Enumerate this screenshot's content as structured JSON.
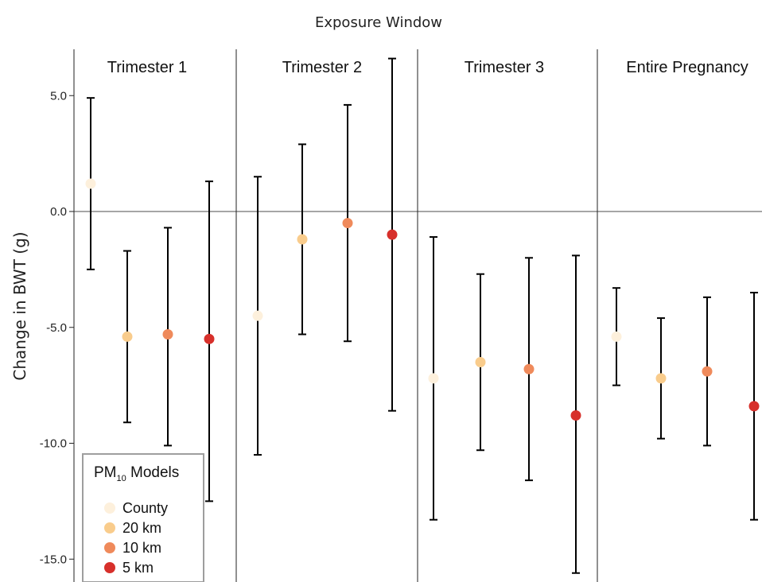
{
  "chart_data": {
    "type": "scatter",
    "title": "Exposure Window",
    "ylabel": "Change in BWT (g)",
    "xlabel": "",
    "ylim": [
      -15.8,
      7.0
    ],
    "yticks": [
      "5.0",
      "0.0",
      "-5.0",
      "-10.0",
      "-15.0"
    ],
    "ytick_values": [
      5,
      0,
      -5,
      -10,
      -15
    ],
    "reference_line": 0,
    "grid": false,
    "facets": [
      "Trimester 1",
      "Trimester 2",
      "Trimester 3",
      "Entire Pregnancy"
    ],
    "legend": {
      "title_main": "PM",
      "title_sub": "10",
      "title_rest": " Models",
      "placement": "bottom-left"
    },
    "series": [
      {
        "name": "County",
        "color": "#fdf0dc",
        "points": [
          {
            "facet": "Trimester 1",
            "y": 1.2,
            "lower": -2.5,
            "upper": 4.9
          },
          {
            "facet": "Trimester 2",
            "y": -4.5,
            "lower": -10.5,
            "upper": 1.5
          },
          {
            "facet": "Trimester 3",
            "y": -7.2,
            "lower": -13.3,
            "upper": -1.1
          },
          {
            "facet": "Entire Pregnancy",
            "y": -5.4,
            "lower": -7.5,
            "upper": -3.3
          }
        ]
      },
      {
        "name": "20 km",
        "color": "#f9cc8c",
        "points": [
          {
            "facet": "Trimester 1",
            "y": -5.4,
            "lower": -9.1,
            "upper": -1.7
          },
          {
            "facet": "Trimester 2",
            "y": -1.2,
            "lower": -5.3,
            "upper": 2.9
          },
          {
            "facet": "Trimester 3",
            "y": -6.5,
            "lower": -10.3,
            "upper": -2.7
          },
          {
            "facet": "Entire Pregnancy",
            "y": -7.2,
            "lower": -9.8,
            "upper": -4.6
          }
        ]
      },
      {
        "name": "10 km",
        "color": "#ef8a5b",
        "points": [
          {
            "facet": "Trimester 1",
            "y": -5.3,
            "lower": -10.1,
            "upper": -0.7
          },
          {
            "facet": "Trimester 2",
            "y": -0.5,
            "lower": -5.6,
            "upper": 4.6
          },
          {
            "facet": "Trimester 3",
            "y": -6.8,
            "lower": -11.6,
            "upper": -2.0
          },
          {
            "facet": "Entire Pregnancy",
            "y": -6.9,
            "lower": -10.1,
            "upper": -3.7
          }
        ]
      },
      {
        "name": "5 km",
        "color": "#d7302b",
        "points": [
          {
            "facet": "Trimester 1",
            "y": -5.5,
            "lower": -12.5,
            "upper": 1.3
          },
          {
            "facet": "Trimester 2",
            "y": -1.0,
            "lower": -8.6,
            "upper": 6.6
          },
          {
            "facet": "Trimester 3",
            "y": -8.8,
            "lower": -15.6,
            "upper": -1.9
          },
          {
            "facet": "Entire Pregnancy",
            "y": -8.4,
            "lower": -13.3,
            "upper": -3.5
          }
        ]
      }
    ]
  }
}
